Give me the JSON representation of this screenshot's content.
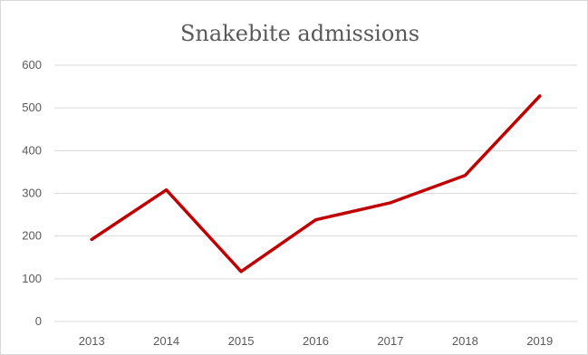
{
  "chart_data": {
    "type": "line",
    "title": "Snakebite admissions",
    "xlabel": "",
    "ylabel": "",
    "categories": [
      "2013",
      "2014",
      "2015",
      "2016",
      "2017",
      "2018",
      "2019"
    ],
    "series": [
      {
        "values": [
          192,
          308,
          117,
          238,
          278,
          342,
          528
        ]
      }
    ],
    "ylim": [
      0,
      600
    ],
    "yticks": [
      0,
      100,
      200,
      300,
      400,
      500,
      600
    ],
    "grid": true,
    "legend": "none",
    "line_color": "#c00000"
  }
}
